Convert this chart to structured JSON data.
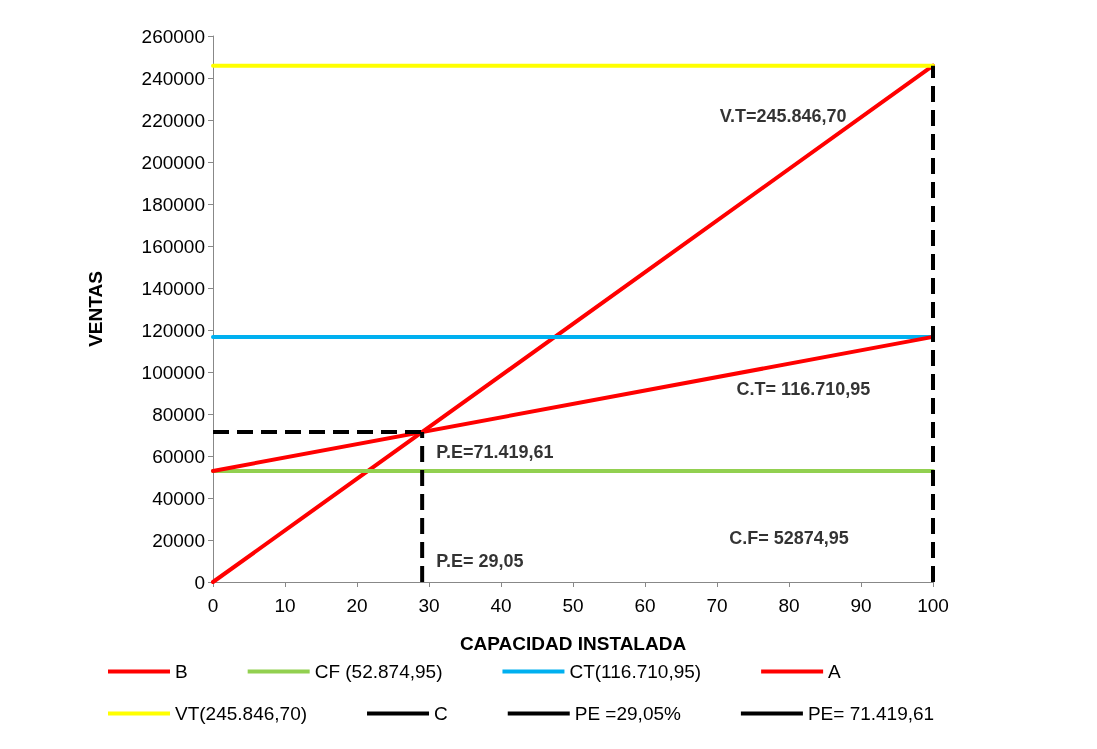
{
  "chart_data": {
    "type": "line",
    "xlabel": "CAPACIDAD INSTALADA",
    "ylabel": "VENTAS",
    "xlim": [
      0,
      100
    ],
    "xticks": [
      0,
      10,
      20,
      30,
      40,
      50,
      60,
      70,
      80,
      90,
      100
    ],
    "ylim": [
      0,
      260000
    ],
    "yticks": [
      0,
      20000,
      40000,
      60000,
      80000,
      100000,
      120000,
      140000,
      160000,
      180000,
      200000,
      220000,
      240000,
      260000
    ],
    "grid": false,
    "legend": "bottom",
    "marker": "none",
    "series": [
      {
        "name": "B",
        "color": "#ff0000",
        "x": [
          0,
          100
        ],
        "values": [
          0,
          245846.7
        ]
      },
      {
        "name": "CF (52.874,95)",
        "color": "#92d050",
        "x": [
          0,
          100
        ],
        "values": [
          52874.95,
          52874.95
        ]
      },
      {
        "name": "CT(116.710,95)",
        "color": "#00b0f0",
        "x": [
          0,
          100
        ],
        "values": [
          116710.95,
          116710.95
        ]
      },
      {
        "name": "A",
        "color": "#ff0000",
        "x": [
          0,
          100
        ],
        "values": [
          52874.95,
          116710.95
        ]
      },
      {
        "name": "VT(245.846,70)",
        "color": "#ffff00",
        "x": [
          0,
          100
        ],
        "values": [
          245846.7,
          245846.7
        ]
      },
      {
        "name": "C",
        "color": "#000000",
        "line_style": "dashed",
        "x": [
          100,
          100
        ],
        "values": [
          0,
          245846.7
        ]
      },
      {
        "name": "PE =29,05%",
        "color": "#000000",
        "line_style": "dashed",
        "x": [
          29.05,
          29.05
        ],
        "values": [
          0,
          71419.61
        ]
      },
      {
        "name": "PE= 71.419,61",
        "color": "#000000",
        "line_style": "dashed",
        "x": [
          0,
          29.05
        ],
        "values": [
          71419.61,
          71419.61
        ]
      }
    ],
    "annotations": [
      "V.T=245.846,70",
      "C.T= 116.710,95",
      "C.F= 52874,95",
      "P.E=71.419,61",
      "P.E= 29,05"
    ]
  }
}
